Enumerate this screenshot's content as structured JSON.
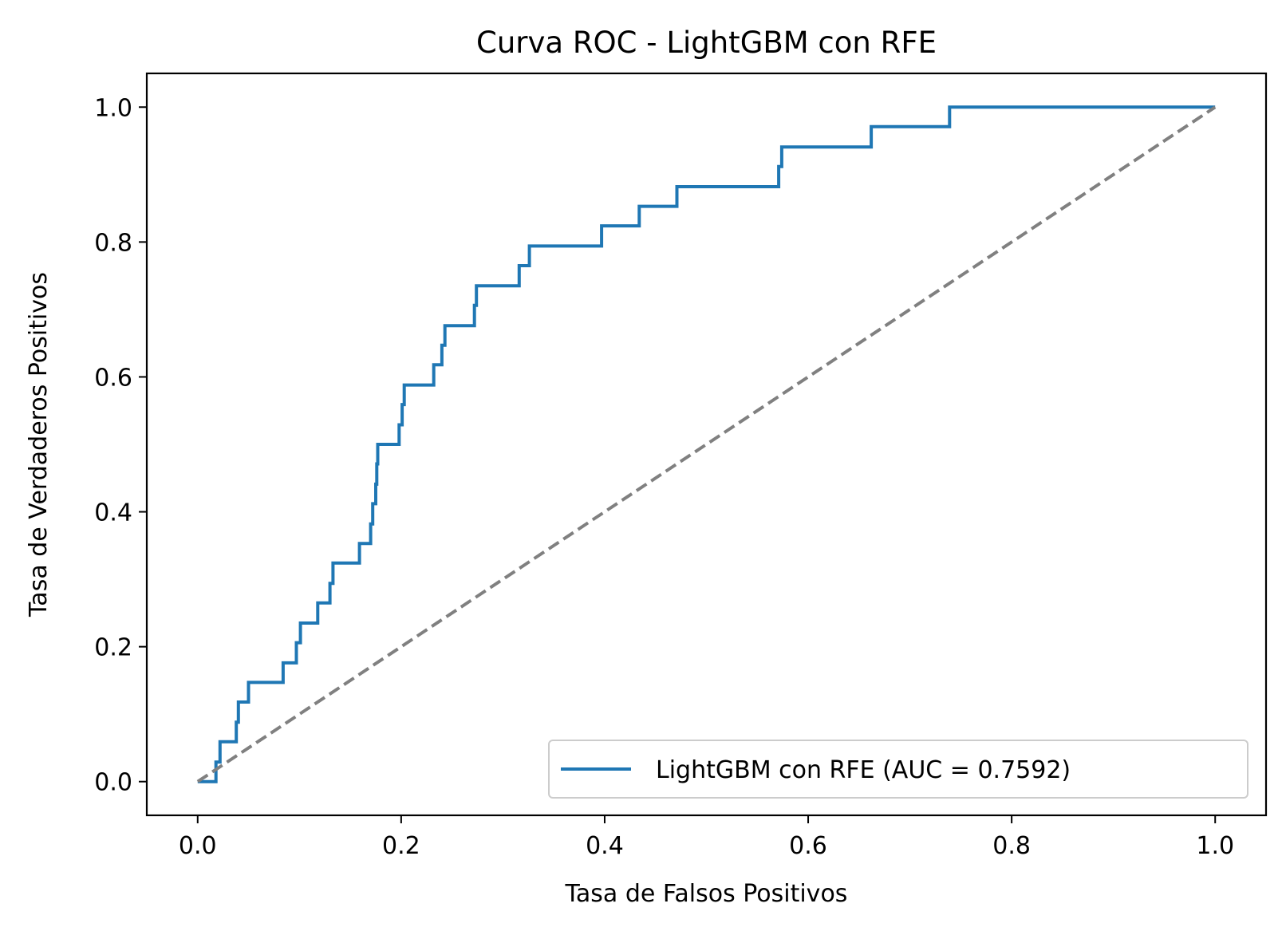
{
  "chart_data": {
    "type": "line",
    "title": "Curva ROC - LightGBM con RFE",
    "xlabel": "Tasa de Falsos Positivos",
    "ylabel": "Tasa de Verdaderos Positivos",
    "xlim": [
      -0.05,
      1.05
    ],
    "ylim": [
      -0.05,
      1.05
    ],
    "xticks": [
      0.0,
      0.2,
      0.4,
      0.6,
      0.8,
      1.0
    ],
    "yticks": [
      0.0,
      0.2,
      0.4,
      0.6,
      0.8,
      1.0
    ],
    "xtick_labels": [
      "0.0",
      "0.2",
      "0.4",
      "0.6",
      "0.8",
      "1.0"
    ],
    "ytick_labels": [
      "0.0",
      "0.2",
      "0.4",
      "0.6",
      "0.8",
      "1.0"
    ],
    "grid": false,
    "legend_position": "lower-right",
    "series": [
      {
        "name": "LightGBM con RFE (AUC = 0.7592)",
        "color": "#1f77b4",
        "style": "solid",
        "step": true,
        "points": [
          [
            0.0,
            0.0
          ],
          [
            0.018,
            0.0
          ],
          [
            0.018,
            0.029
          ],
          [
            0.022,
            0.029
          ],
          [
            0.022,
            0.059
          ],
          [
            0.038,
            0.059
          ],
          [
            0.038,
            0.088
          ],
          [
            0.04,
            0.088
          ],
          [
            0.04,
            0.118
          ],
          [
            0.05,
            0.118
          ],
          [
            0.05,
            0.147
          ],
          [
            0.084,
            0.147
          ],
          [
            0.084,
            0.176
          ],
          [
            0.097,
            0.176
          ],
          [
            0.097,
            0.206
          ],
          [
            0.101,
            0.206
          ],
          [
            0.101,
            0.235
          ],
          [
            0.118,
            0.235
          ],
          [
            0.118,
            0.265
          ],
          [
            0.13,
            0.265
          ],
          [
            0.13,
            0.294
          ],
          [
            0.133,
            0.294
          ],
          [
            0.133,
            0.324
          ],
          [
            0.159,
            0.324
          ],
          [
            0.159,
            0.353
          ],
          [
            0.17,
            0.353
          ],
          [
            0.17,
            0.382
          ],
          [
            0.172,
            0.382
          ],
          [
            0.172,
            0.412
          ],
          [
            0.175,
            0.412
          ],
          [
            0.175,
            0.441
          ],
          [
            0.176,
            0.441
          ],
          [
            0.176,
            0.471
          ],
          [
            0.177,
            0.471
          ],
          [
            0.177,
            0.5
          ],
          [
            0.198,
            0.5
          ],
          [
            0.198,
            0.529
          ],
          [
            0.201,
            0.529
          ],
          [
            0.201,
            0.559
          ],
          [
            0.203,
            0.559
          ],
          [
            0.203,
            0.588
          ],
          [
            0.232,
            0.588
          ],
          [
            0.232,
            0.618
          ],
          [
            0.24,
            0.618
          ],
          [
            0.24,
            0.647
          ],
          [
            0.243,
            0.647
          ],
          [
            0.243,
            0.676
          ],
          [
            0.272,
            0.676
          ],
          [
            0.272,
            0.706
          ],
          [
            0.274,
            0.706
          ],
          [
            0.274,
            0.735
          ],
          [
            0.316,
            0.735
          ],
          [
            0.316,
            0.765
          ],
          [
            0.326,
            0.765
          ],
          [
            0.326,
            0.794
          ],
          [
            0.397,
            0.794
          ],
          [
            0.397,
            0.824
          ],
          [
            0.434,
            0.824
          ],
          [
            0.434,
            0.853
          ],
          [
            0.471,
            0.853
          ],
          [
            0.471,
            0.882
          ],
          [
            0.571,
            0.882
          ],
          [
            0.571,
            0.912
          ],
          [
            0.574,
            0.912
          ],
          [
            0.574,
            0.941
          ],
          [
            0.662,
            0.941
          ],
          [
            0.662,
            0.971
          ],
          [
            0.739,
            0.971
          ],
          [
            0.739,
            1.0
          ],
          [
            1.0,
            1.0
          ]
        ]
      },
      {
        "color": "#808080",
        "style": "dashed",
        "points": [
          [
            0.0,
            0.0
          ],
          [
            1.0,
            1.0
          ]
        ]
      }
    ],
    "legend": [
      {
        "label": "LightGBM con RFE (AUC = 0.7592)",
        "color": "#1f77b4"
      }
    ]
  }
}
